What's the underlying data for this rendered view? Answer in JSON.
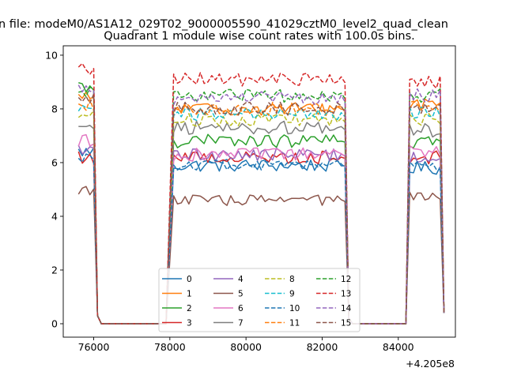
{
  "figure": {
    "suptitle": "n file: modeM0/AS1A12_029T02_9000005590_41029cztM0_level2_quad_clean",
    "offset_label": "+4.205e8"
  },
  "chart_data": {
    "type": "line",
    "title": "Quadrant 1 module wise count rates with 100.0s bins.",
    "xlabel": "",
    "ylabel": "",
    "xlim": [
      75200,
      85500
    ],
    "ylim": [
      -0.5,
      10.35
    ],
    "x_offset": 420500000,
    "xticks": [
      76000,
      78000,
      80000,
      82000,
      84000
    ],
    "yticks": [
      0,
      2,
      4,
      6,
      8,
      10
    ],
    "grid": false,
    "legend": {
      "placement": "lower-center",
      "columns": 4
    },
    "segments": [
      {
        "x_start": 75600,
        "x_end": 76000
      },
      {
        "x_start": 78100,
        "x_end": 82600
      },
      {
        "x_start": 84300,
        "x_end": 85100
      }
    ],
    "gap_points": [
      {
        "x": 76100,
        "value": 0.3
      },
      {
        "x": 76200,
        "value": 0.0
      },
      {
        "x": 77900,
        "value": 0.0
      },
      {
        "x": 82700,
        "value": 0.2
      },
      {
        "x": 82800,
        "value": 0.0
      },
      {
        "x": 84200,
        "value": 0.0
      }
    ],
    "series": [
      {
        "name": "0",
        "color": "#1f77b4",
        "style": "solid",
        "seg_levels": [
          6.4,
          5.9,
          5.8
        ],
        "noise": 0.25
      },
      {
        "name": "1",
        "color": "#ff7f0e",
        "style": "solid",
        "seg_levels": [
          8.4,
          8.0,
          8.2
        ],
        "noise": 0.25
      },
      {
        "name": "2",
        "color": "#2ca02c",
        "style": "solid",
        "seg_levels": [
          8.8,
          6.8,
          6.8
        ],
        "noise": 0.25
      },
      {
        "name": "3",
        "color": "#d62728",
        "style": "solid",
        "seg_levels": [
          6.2,
          6.2,
          6.2
        ],
        "noise": 0.25
      },
      {
        "name": "4",
        "color": "#9467bd",
        "style": "solid",
        "seg_levels": [
          6.4,
          6.3,
          6.2
        ],
        "noise": 0.25
      },
      {
        "name": "5",
        "color": "#8c564b",
        "style": "solid",
        "seg_levels": [
          5.0,
          4.6,
          4.7
        ],
        "noise": 0.2
      },
      {
        "name": "6",
        "color": "#e377c2",
        "style": "solid",
        "seg_levels": [
          6.8,
          6.3,
          6.4
        ],
        "noise": 0.25
      },
      {
        "name": "7",
        "color": "#7f7f7f",
        "style": "solid",
        "seg_levels": [
          7.5,
          7.3,
          7.2
        ],
        "noise": 0.25
      },
      {
        "name": "8",
        "color": "#bcbd22",
        "style": "dashed",
        "seg_levels": [
          7.8,
          7.6,
          7.6
        ],
        "noise": 0.25
      },
      {
        "name": "9",
        "color": "#17becf",
        "style": "dashed",
        "seg_levels": [
          8.0,
          7.8,
          7.9
        ],
        "noise": 0.25
      },
      {
        "name": "10",
        "color": "#1f77b4",
        "style": "dashed",
        "seg_levels": [
          6.2,
          5.9,
          5.9
        ],
        "noise": 0.2
      },
      {
        "name": "11",
        "color": "#ff7f0e",
        "style": "dashed",
        "seg_levels": [
          8.2,
          8.0,
          8.1
        ],
        "noise": 0.25
      },
      {
        "name": "12",
        "color": "#2ca02c",
        "style": "dashed",
        "seg_levels": [
          8.6,
          8.5,
          8.5
        ],
        "noise": 0.25
      },
      {
        "name": "13",
        "color": "#d62728",
        "style": "dashed",
        "seg_levels": [
          9.5,
          9.1,
          9.0
        ],
        "noise": 0.25
      },
      {
        "name": "14",
        "color": "#9467bd",
        "style": "dashed",
        "seg_levels": [
          8.8,
          8.4,
          8.5
        ],
        "noise": 0.25
      },
      {
        "name": "15",
        "color": "#8c564b",
        "style": "dashed",
        "seg_levels": [
          8.3,
          8.0,
          8.0
        ],
        "noise": 0.25
      }
    ]
  }
}
